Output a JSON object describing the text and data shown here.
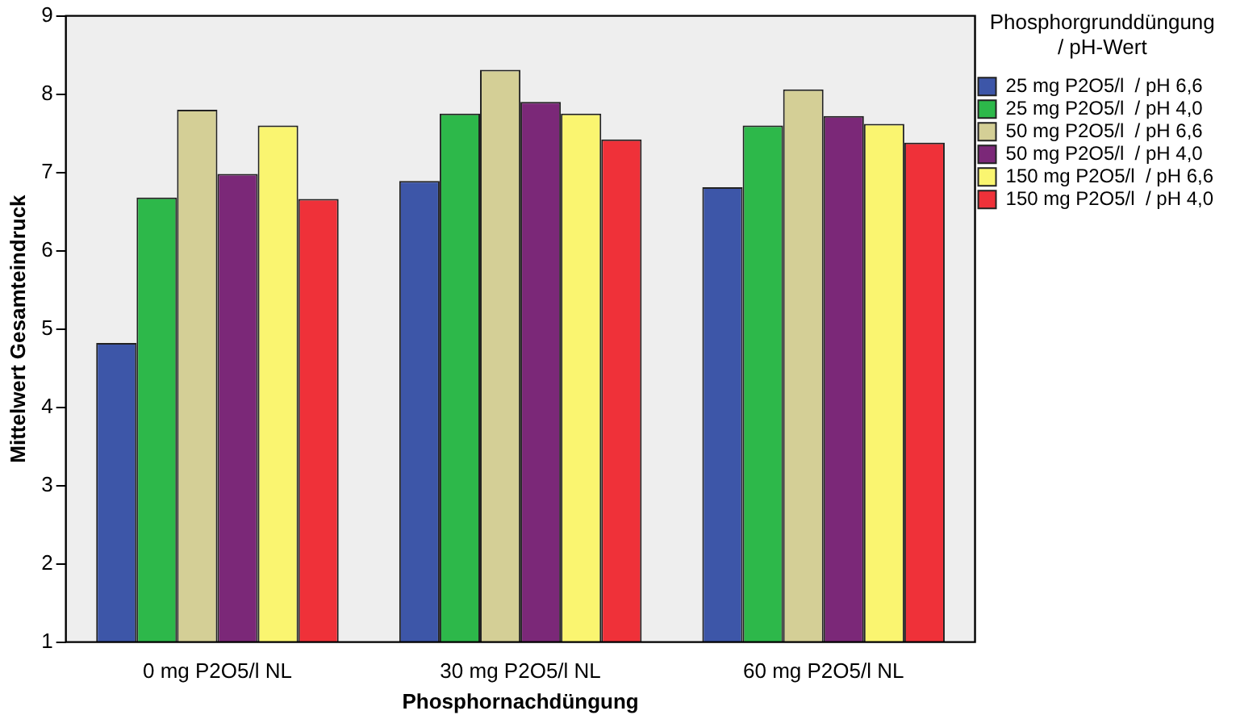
{
  "chart_data": {
    "type": "bar",
    "xlabel": "Phosphornachdüngung",
    "ylabel": "Mittelwert Gesamteindruck",
    "legend_title": "Phosphorgrunddüngung / pH-Wert",
    "categories": [
      "0 mg P2O5/l NL",
      "30 mg P2O5/l NL",
      "60 mg P2O5/l NL"
    ],
    "series": [
      {
        "name": "25 mg P2O5/l  / pH 6,6",
        "color": "#3d56a8",
        "values": [
          4.82,
          6.89,
          6.81
        ]
      },
      {
        "name": "25 mg P2O5/l  / pH 4,0",
        "color": "#2db84a",
        "values": [
          6.68,
          7.75,
          7.6
        ]
      },
      {
        "name": "50 mg P2O5/l  / pH 6,6",
        "color": "#d4cf96",
        "values": [
          7.8,
          8.31,
          8.06
        ]
      },
      {
        "name": "50 mg P2O5/l  / pH 4,0",
        "color": "#7b2878",
        "values": [
          6.98,
          7.9,
          7.72
        ]
      },
      {
        "name": "150 mg P2O5/l  / pH 6,6",
        "color": "#faf570",
        "values": [
          7.6,
          7.75,
          7.62
        ]
      },
      {
        "name": "150 mg P2O5/l  / pH 4,0",
        "color": "#ef3139",
        "values": [
          6.66,
          7.42,
          7.38
        ]
      }
    ],
    "ylim": [
      1,
      9
    ],
    "yticks": [
      1,
      2,
      3,
      4,
      5,
      6,
      7,
      8,
      9
    ],
    "grid": false,
    "legend": "top right"
  }
}
